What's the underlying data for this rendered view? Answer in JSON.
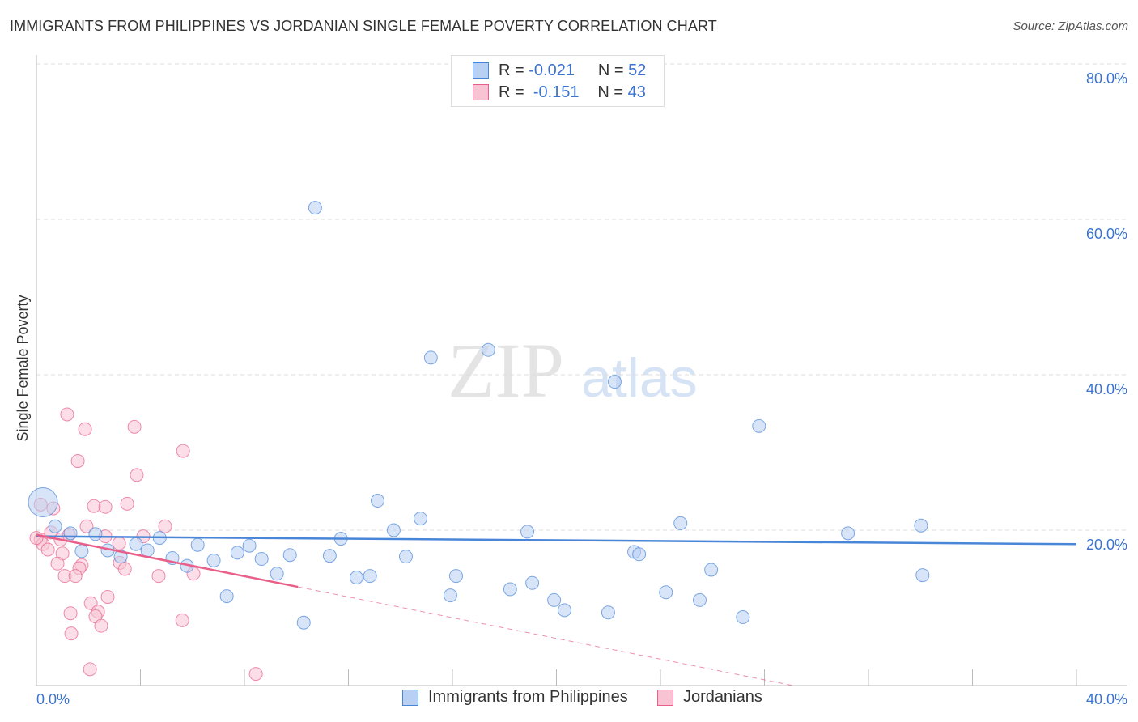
{
  "title": "IMMIGRANTS FROM PHILIPPINES VS JORDANIAN SINGLE FEMALE POVERTY CORRELATION CHART",
  "source": "Source: ZipAtlas.com",
  "legend_top": [
    {
      "r_label": "R =",
      "r_value": "-0.021",
      "n_label": "N =",
      "n_value": "52"
    },
    {
      "r_label": "R =",
      "r_value": "-0.151",
      "n_label": "N =",
      "n_value": "43"
    }
  ],
  "watermark": "ZIPatlas",
  "colors": {
    "blue": "#4a86d8",
    "blue_fill": "#b8d0f3",
    "pink": "#e8608a",
    "pink_fill": "#f8c3d3",
    "axis_label": "#3b73d1"
  },
  "chart_data": {
    "type": "scatter",
    "title": "IMMIGRANTS FROM PHILIPPINES VS JORDANIAN SINGLE FEMALE POVERTY CORRELATION CHART",
    "xlabel": "",
    "ylabel": "Single Female Poverty",
    "xlim": [
      0,
      40
    ],
    "ylim": [
      0,
      80
    ],
    "x_tick_labels": [
      "0.0%",
      "40.0%"
    ],
    "y_tick_labels": [
      "80.0%",
      "60.0%",
      "40.0%",
      "20.0%"
    ],
    "y_ticks": [
      80,
      60,
      40,
      20
    ],
    "grid": true,
    "legend_position": "bottom",
    "series": [
      {
        "name": "Immigrants from Philippines",
        "color": "#4a86d8",
        "trend": {
          "x": [
            0,
            40
          ],
          "y": [
            19.2,
            18.2
          ]
        },
        "points": [
          [
            0.25,
            23.6,
            "big"
          ],
          [
            0.72,
            20.5
          ],
          [
            1.31,
            19.6
          ],
          [
            1.74,
            17.3
          ],
          [
            2.27,
            19.5
          ],
          [
            2.74,
            17.4
          ],
          [
            3.24,
            16.6
          ],
          [
            3.83,
            18.2
          ],
          [
            4.27,
            17.4
          ],
          [
            4.74,
            19.0
          ],
          [
            5.23,
            16.4
          ],
          [
            5.79,
            15.4
          ],
          [
            6.2,
            18.1
          ],
          [
            6.82,
            16.1
          ],
          [
            7.32,
            11.5
          ],
          [
            7.73,
            17.1
          ],
          [
            8.19,
            18.0
          ],
          [
            8.66,
            16.3
          ],
          [
            9.25,
            14.4
          ],
          [
            9.75,
            16.8
          ],
          [
            10.28,
            8.1
          ],
          [
            10.72,
            61.5
          ],
          [
            11.28,
            16.7
          ],
          [
            11.71,
            18.9
          ],
          [
            12.31,
            13.9
          ],
          [
            12.83,
            14.1
          ],
          [
            13.12,
            23.8
          ],
          [
            13.74,
            20.0
          ],
          [
            14.21,
            16.6
          ],
          [
            14.77,
            21.5
          ],
          [
            15.17,
            42.2
          ],
          [
            15.92,
            11.6
          ],
          [
            16.14,
            14.1
          ],
          [
            17.38,
            43.2
          ],
          [
            18.22,
            12.4
          ],
          [
            18.88,
            19.8
          ],
          [
            19.07,
            13.2
          ],
          [
            19.91,
            11.0
          ],
          [
            20.31,
            9.7
          ],
          [
            21.99,
            9.4
          ],
          [
            22.24,
            39.1
          ],
          [
            22.99,
            17.2
          ],
          [
            23.18,
            16.9
          ],
          [
            24.21,
            12.0
          ],
          [
            24.77,
            20.9
          ],
          [
            25.51,
            11.0
          ],
          [
            25.95,
            14.9
          ],
          [
            27.17,
            8.8
          ],
          [
            27.79,
            33.4
          ],
          [
            31.21,
            19.6
          ],
          [
            34.02,
            20.6
          ],
          [
            34.08,
            14.2
          ]
        ]
      },
      {
        "name": "Jordanians",
        "color": "#e8608a",
        "trend": {
          "x": [
            0,
            10.06
          ],
          "y": [
            19.4,
            12.7
          ],
          "dashed_to": [
            29.1,
            0
          ]
        },
        "points": [
          [
            1.18,
            34.9
          ],
          [
            1.87,
            33.0
          ],
          [
            3.77,
            33.3
          ],
          [
            5.64,
            30.2
          ],
          [
            1.59,
            28.9
          ],
          [
            3.86,
            27.1
          ],
          [
            0.65,
            22.8
          ],
          [
            2.21,
            23.1
          ],
          [
            2.65,
            23.0
          ],
          [
            3.49,
            23.4
          ],
          [
            1.93,
            20.5
          ],
          [
            4.95,
            20.5
          ],
          [
            0.16,
            18.8
          ],
          [
            0.56,
            19.7
          ],
          [
            0.93,
            18.8
          ],
          [
            2.65,
            19.2
          ],
          [
            3.18,
            18.3
          ],
          [
            4.11,
            19.2
          ],
          [
            0.25,
            18.2
          ],
          [
            0.44,
            17.5
          ],
          [
            1.0,
            17.0
          ],
          [
            0.81,
            15.7
          ],
          [
            1.74,
            15.5
          ],
          [
            1.65,
            15.1
          ],
          [
            1.09,
            14.1
          ],
          [
            1.5,
            14.1
          ],
          [
            3.21,
            15.8
          ],
          [
            3.4,
            15.0
          ],
          [
            4.7,
            14.1
          ],
          [
            6.04,
            14.4
          ],
          [
            2.74,
            11.4
          ],
          [
            2.09,
            10.6
          ],
          [
            1.31,
            9.3
          ],
          [
            2.37,
            9.5
          ],
          [
            2.27,
            8.9
          ],
          [
            2.49,
            7.7
          ],
          [
            5.61,
            8.4
          ],
          [
            1.34,
            6.7
          ],
          [
            2.06,
            2.1
          ],
          [
            8.44,
            1.5
          ],
          [
            0.16,
            23.3
          ],
          [
            0.0,
            19.0
          ],
          [
            1.25,
            19.4
          ]
        ]
      }
    ]
  }
}
